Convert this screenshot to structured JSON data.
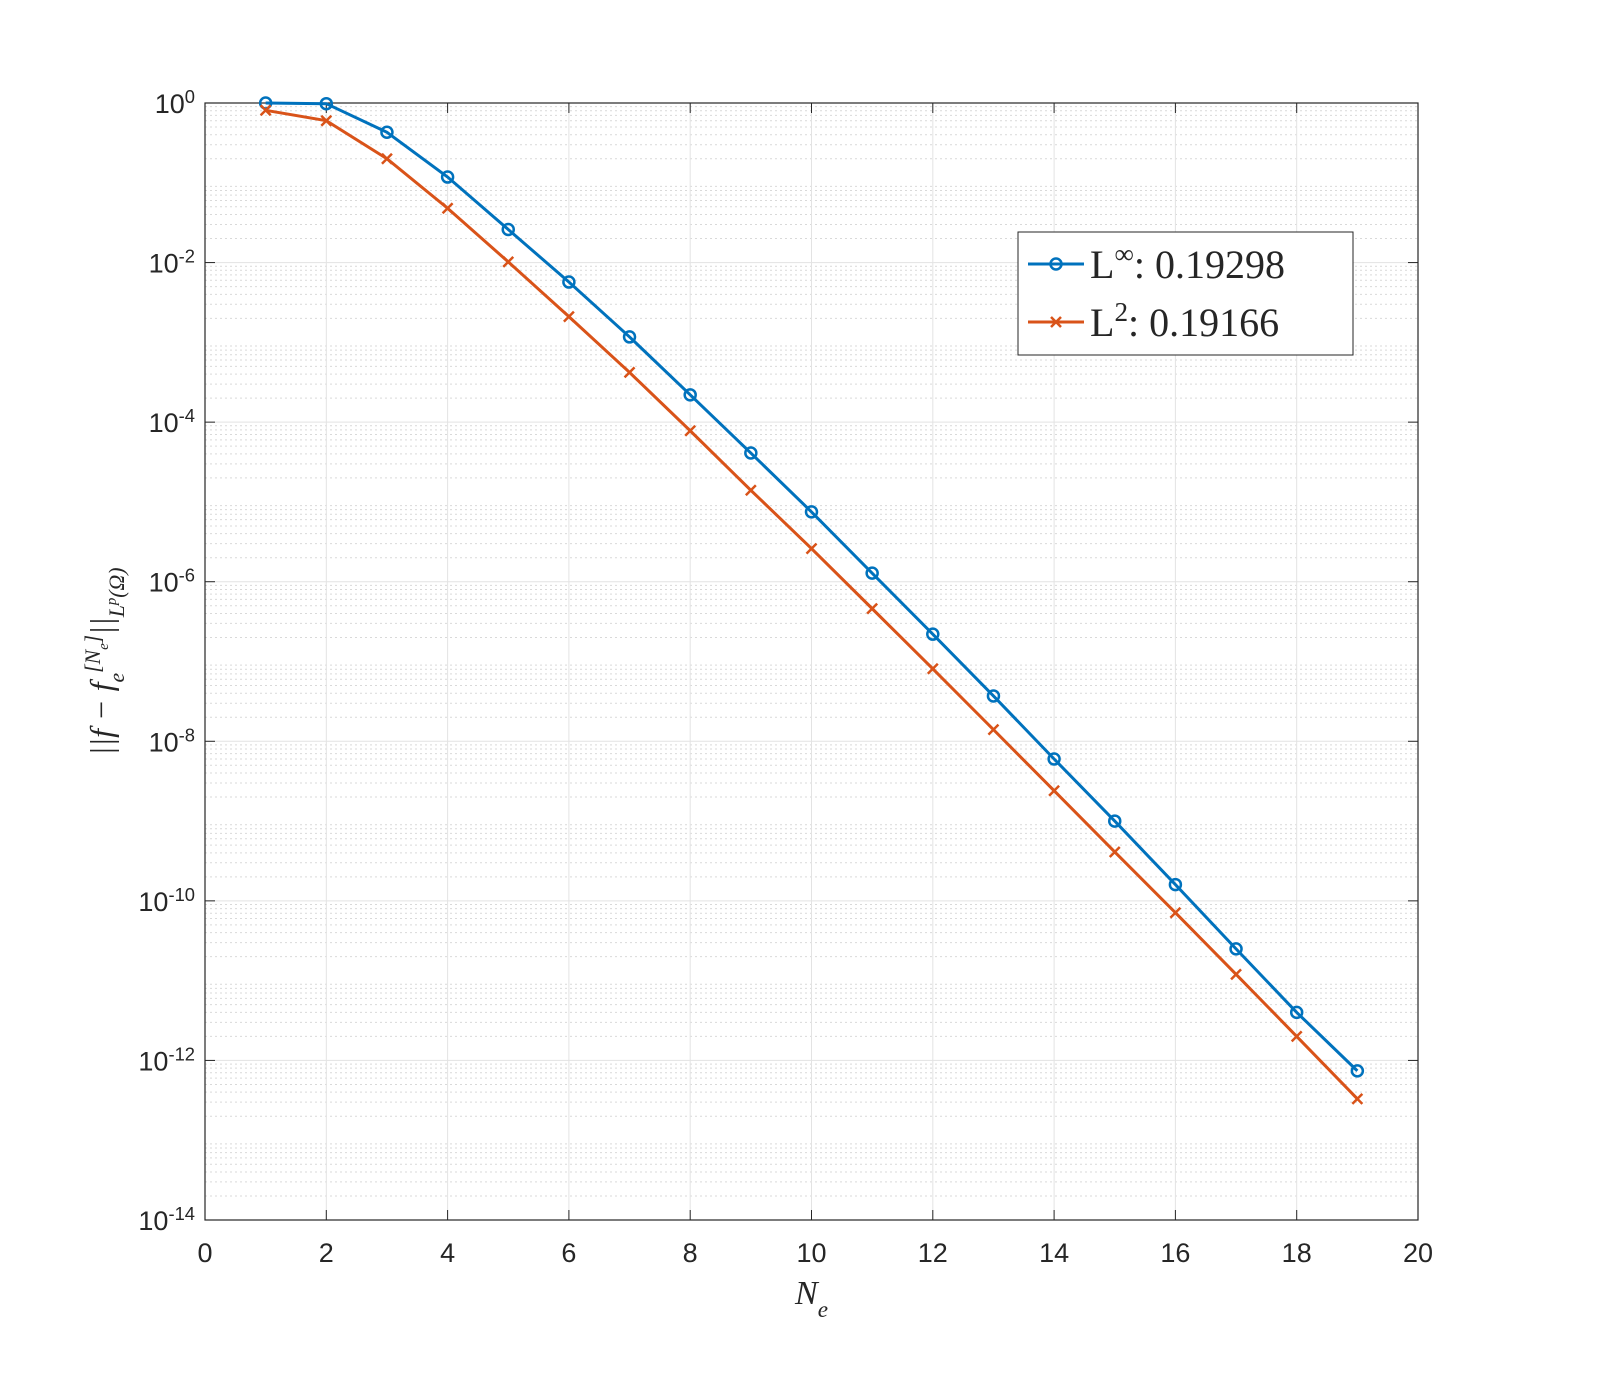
{
  "chart_data": {
    "type": "line",
    "x": [
      1,
      2,
      3,
      4,
      5,
      6,
      7,
      8,
      9,
      10,
      11,
      12,
      13,
      14,
      15,
      16,
      17,
      18,
      19
    ],
    "series": [
      {
        "name": "L^{∞}: 0.19298",
        "color": "#0072BD",
        "marker": "o",
        "values": [
          1,
          0.98,
          0.43,
          0.118,
          0.026,
          0.0057,
          0.00117,
          0.00022,
          4.1e-05,
          7.5e-06,
          1.28e-06,
          2.2e-07,
          3.7e-08,
          6e-09,
          1e-09,
          1.6e-10,
          2.5e-11,
          4e-12,
          7.4e-13
        ]
      },
      {
        "name": "L^{2}: 0.19166",
        "color": "#D95319",
        "marker": "x",
        "values": [
          0.81,
          0.6,
          0.2,
          0.048,
          0.0102,
          0.0021,
          0.00042,
          7.8e-05,
          1.4e-05,
          2.6e-06,
          4.6e-07,
          8.1e-08,
          1.4e-08,
          2.4e-09,
          4.1e-10,
          7.1e-11,
          1.2e-11,
          2e-12,
          3.3e-13
        ]
      }
    ],
    "xlabel": "N_{e}",
    "ylabel": "||f − f_{e}^{[N_{e}]}||_{L^{p}(Ω)}",
    "xlim": [
      0,
      20
    ],
    "xticks": [
      0,
      2,
      4,
      6,
      8,
      10,
      12,
      14,
      16,
      18,
      20
    ],
    "ylim": [
      1e-14,
      1
    ],
    "yscale": "log",
    "yticks": [
      {
        "value": 1e-14,
        "label": "10^{-14}"
      },
      {
        "value": 1e-12,
        "label": "10^{-12}"
      },
      {
        "value": 1e-10,
        "label": "10^{-10}"
      },
      {
        "value": 1e-08,
        "label": "10^{-8}"
      },
      {
        "value": 1e-06,
        "label": "10^{-6}"
      },
      {
        "value": 0.0001,
        "label": "10^{-4}"
      },
      {
        "value": 0.01,
        "label": "10^{-2}"
      },
      {
        "value": 1,
        "label": "10^{0}"
      }
    ],
    "grid": true,
    "minor_grid": true,
    "legend": "northeast"
  }
}
